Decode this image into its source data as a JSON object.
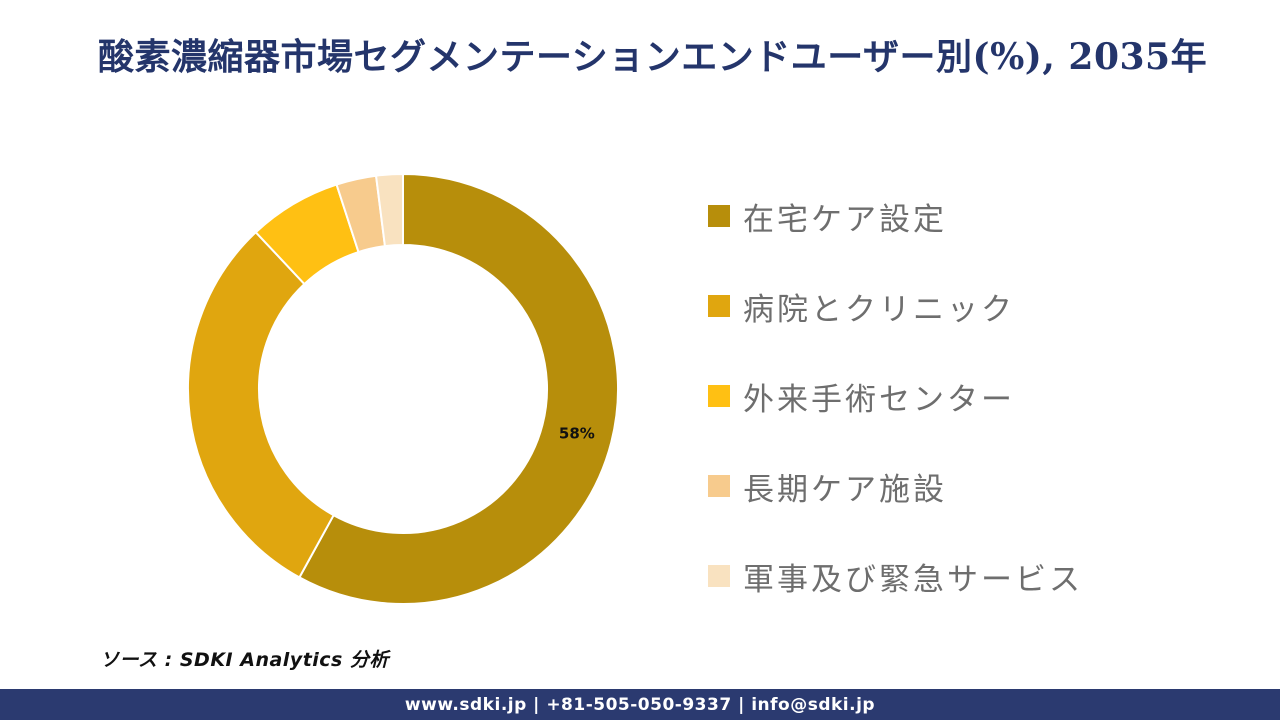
{
  "page": {
    "title": "酸素濃縮器市場セグメンテーションエンドユーザー別(%), 2035年",
    "source_note": "ソース : SDKI Analytics 分析",
    "footer": "www.sdki.jp | +81-505-050-9337 | info@sdki.jp"
  },
  "colors": {
    "title_text": "#24356B",
    "legend_text": "#6E6E6E",
    "data_label_text": "#111111",
    "segment_separator": "#FFFFFF",
    "footer_bg": "#2B3A70",
    "footer_text": "#FFFFFF"
  },
  "chart_data": {
    "type": "pie",
    "subtype": "donut",
    "title": "酸素濃縮器市場セグメンテーションエンドユーザー別(%), 2035年",
    "unit": "%",
    "year": "2035年",
    "start_angle_deg": 0,
    "direction": "clockwise",
    "inner_radius_ratio": 0.67,
    "legend_position": "right",
    "segments": [
      {
        "label": "在宅ケア設定",
        "value": 58,
        "color": "#B78E0B",
        "data_label": "58%"
      },
      {
        "label": "病院とクリニック",
        "value": 30,
        "color": "#E0A60F",
        "data_label": ""
      },
      {
        "label": "外来手術センター",
        "value": 7,
        "color": "#FFC013",
        "data_label": ""
      },
      {
        "label": "長期ケア施設",
        "value": 3,
        "color": "#F7CB8D",
        "data_label": ""
      },
      {
        "label": "軍事及び緊急サービス",
        "value": 2,
        "color": "#F9E2C0",
        "data_label": ""
      }
    ]
  }
}
